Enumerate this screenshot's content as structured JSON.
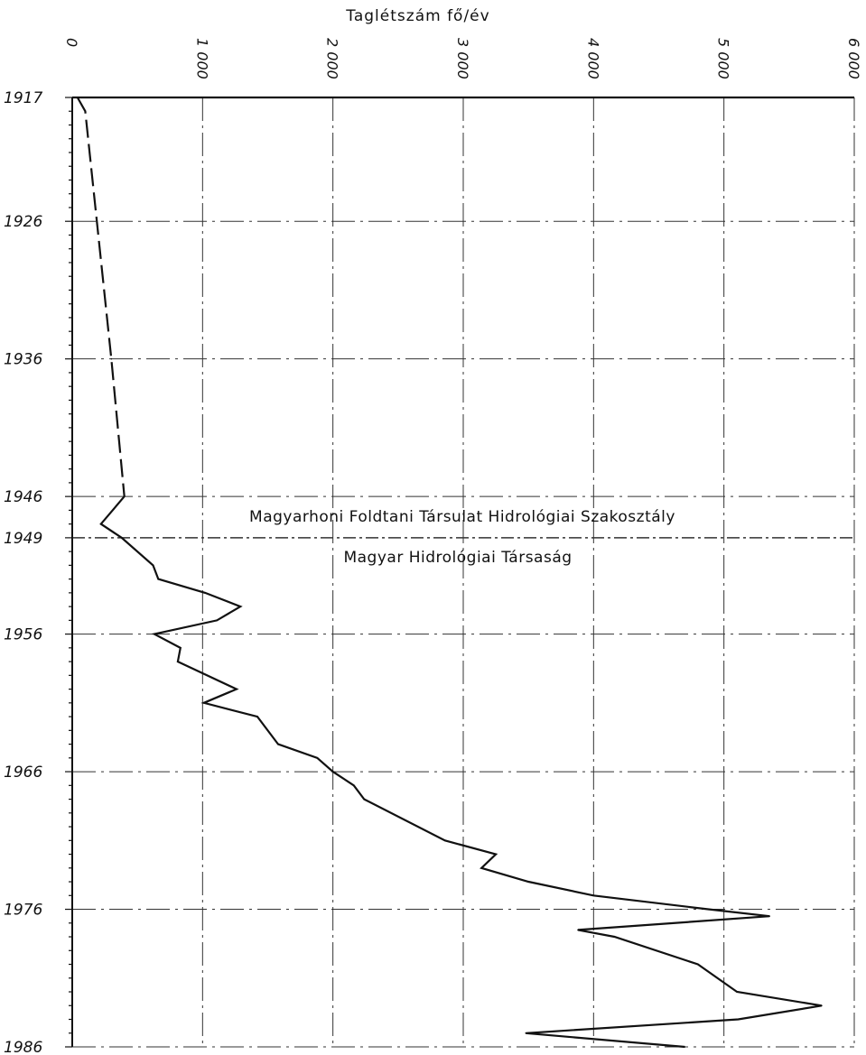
{
  "chart_data": {
    "type": "line",
    "title": "Taglétszám fő/év",
    "orientation": "vertical-time-axis",
    "xlabel": "Taglétszám fő/év",
    "ylabel": "",
    "x_axis_position": "top",
    "y_axis_reversed": true,
    "xlim": [
      0,
      6000
    ],
    "ylim": [
      1917,
      1986
    ],
    "x_ticks": [
      0,
      1000,
      2000,
      3000,
      4000,
      5000,
      6000
    ],
    "x_tick_labels": [
      "0",
      "1 000",
      "2 000",
      "3 000",
      "4 000",
      "5 000",
      "6 000"
    ],
    "y_ticks": [
      1917,
      1926,
      1936,
      1946,
      1949,
      1956,
      1966,
      1976,
      1986
    ],
    "y_tick_labels": [
      "1917",
      "1926",
      "1936",
      "1946",
      "1949",
      "1956",
      "1966",
      "1976",
      "1986"
    ],
    "grid": true,
    "grid_style": "dash-dot",
    "colors": {
      "line": "#111111",
      "grid": "#333333",
      "axis": "#111111"
    },
    "series": [
      {
        "style": "dashed",
        "points": [
          {
            "year": 1917,
            "value": 40
          },
          {
            "year": 1918,
            "value": 100
          },
          {
            "year": 1936,
            "value": 300
          },
          {
            "year": 1946,
            "value": 400
          }
        ]
      },
      {
        "style": "solid",
        "points": [
          {
            "year": 1946,
            "value": 400
          },
          {
            "year": 1948,
            "value": 220
          },
          {
            "year": 1949,
            "value": 380
          },
          {
            "year": 1951,
            "value": 620
          },
          {
            "year": 1952,
            "value": 660
          },
          {
            "year": 1953,
            "value": 1020
          },
          {
            "year": 1954,
            "value": 1290
          },
          {
            "year": 1955,
            "value": 1110
          },
          {
            "year": 1956,
            "value": 630
          },
          {
            "year": 1957,
            "value": 830
          },
          {
            "year": 1958,
            "value": 810
          },
          {
            "year": 1960,
            "value": 1260
          },
          {
            "year": 1961,
            "value": 1010
          },
          {
            "year": 1962,
            "value": 1420
          },
          {
            "year": 1964,
            "value": 1580
          },
          {
            "year": 1965,
            "value": 1880
          },
          {
            "year": 1966,
            "value": 2000
          },
          {
            "year": 1967,
            "value": 2160
          },
          {
            "year": 1968,
            "value": 2240
          },
          {
            "year": 1971,
            "value": 2860
          },
          {
            "year": 1972,
            "value": 3250
          },
          {
            "year": 1973,
            "value": 3140
          },
          {
            "year": 1974,
            "value": 3500
          },
          {
            "year": 1975,
            "value": 4000
          },
          {
            "year": 1976,
            "value": 4880
          },
          {
            "year": 1976.5,
            "value": 5350
          },
          {
            "year": 1977.5,
            "value": 3880
          },
          {
            "year": 1978,
            "value": 4160
          },
          {
            "year": 1980,
            "value": 4800
          },
          {
            "year": 1982,
            "value": 5100
          },
          {
            "year": 1983,
            "value": 5750
          },
          {
            "year": 1984,
            "value": 5110
          },
          {
            "year": 1985,
            "value": 3480
          },
          {
            "year": 1986,
            "value": 4700
          }
        ]
      }
    ],
    "annotations": [
      {
        "text": "Magyarhoni Foldtani Társulat Hidrológiai Szakosztály",
        "year": 1948,
        "value_center": 3500
      },
      {
        "text": "Magyar Hidrológiai Társaság",
        "year": 1950.5,
        "value_center": 3200
      }
    ]
  }
}
